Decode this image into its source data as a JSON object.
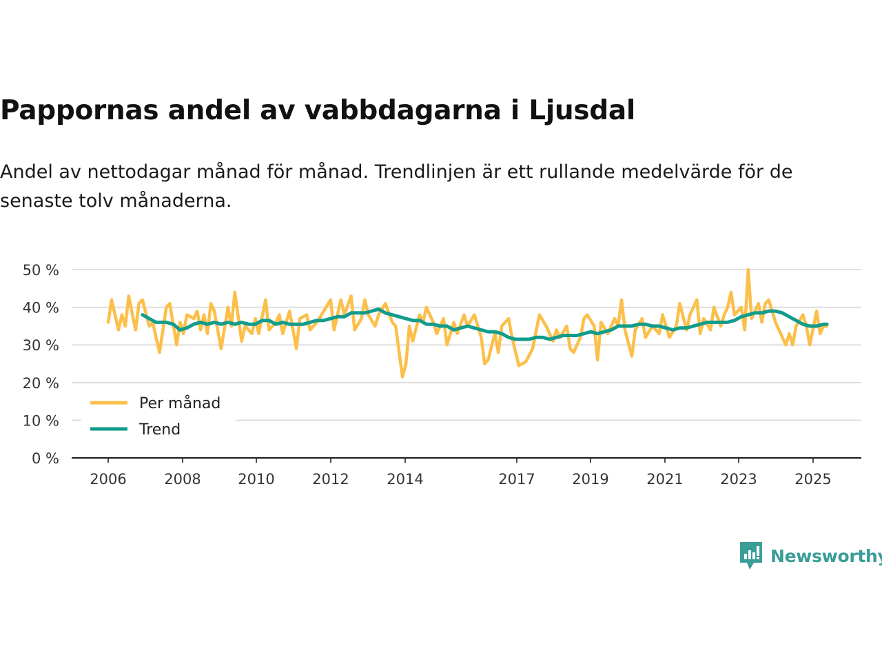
{
  "title": "Pappornas andel av vabbdagarna i Ljusdal",
  "subtitle": "Andel av nettodagar månad för månad. Trendlinjen är ett rullande medelvärde för de senaste tolv månaderna.",
  "brand": "Newsworthy",
  "colors": {
    "monthly": "#fbbf4a",
    "trend": "#139c8c",
    "grid": "#d9d9d9",
    "axis": "#222222",
    "brand": "#3a9d98"
  },
  "chart_data": {
    "type": "line",
    "title": "Pappornas andel av vabbdagarna i Ljusdal",
    "xlabel": "",
    "ylabel": "",
    "ylim": [
      0,
      50
    ],
    "xlim": [
      2005.7,
      2027.0
    ],
    "y_ticks": [
      0,
      10,
      20,
      30,
      40,
      50
    ],
    "y_tick_labels": [
      "0 %",
      "10 %",
      "20 %",
      "30 %",
      "40 %",
      "50 %"
    ],
    "x_ticks": [
      2006,
      2008,
      2010,
      2012,
      2014,
      2017,
      2019,
      2021,
      2023,
      2025
    ],
    "x_tick_labels": [
      "2006",
      "2008",
      "2010",
      "2012",
      "2014",
      "2017",
      "2019",
      "2021",
      "2023",
      "2025"
    ],
    "legend": {
      "position": "bottom-left",
      "entries": [
        "Per månad",
        "Trend"
      ]
    },
    "series": [
      {
        "name": "Per månad",
        "points": [
          [
            2006.0,
            36
          ],
          [
            2006.1,
            42
          ],
          [
            2006.3,
            34
          ],
          [
            2006.4,
            38
          ],
          [
            2006.5,
            35
          ],
          [
            2006.6,
            43
          ],
          [
            2006.8,
            34
          ],
          [
            2006.9,
            41
          ],
          [
            2007.0,
            42
          ],
          [
            2007.2,
            35
          ],
          [
            2007.3,
            36
          ],
          [
            2007.5,
            28
          ],
          [
            2007.7,
            40
          ],
          [
            2007.8,
            41
          ],
          [
            2008.0,
            30
          ],
          [
            2008.1,
            36
          ],
          [
            2008.2,
            33
          ],
          [
            2008.3,
            38
          ],
          [
            2008.5,
            37
          ],
          [
            2008.6,
            39
          ],
          [
            2008.7,
            34
          ],
          [
            2008.8,
            38
          ],
          [
            2008.9,
            33
          ],
          [
            2009.0,
            41
          ],
          [
            2009.1,
            39
          ],
          [
            2009.3,
            29
          ],
          [
            2009.5,
            40
          ],
          [
            2009.6,
            35
          ],
          [
            2009.7,
            44
          ],
          [
            2009.9,
            31
          ],
          [
            2010.0,
            35
          ],
          [
            2010.2,
            33
          ],
          [
            2010.3,
            37
          ],
          [
            2010.4,
            33
          ],
          [
            2010.6,
            42
          ],
          [
            2010.7,
            34
          ],
          [
            2010.9,
            36
          ],
          [
            2011.0,
            38
          ],
          [
            2011.1,
            33
          ],
          [
            2011.3,
            39
          ],
          [
            2011.5,
            29
          ],
          [
            2011.6,
            37
          ],
          [
            2011.8,
            38
          ],
          [
            2011.9,
            34
          ],
          [
            2012.1,
            36
          ],
          [
            2012.3,
            39
          ],
          [
            2012.5,
            42
          ],
          [
            2012.6,
            34
          ],
          [
            2012.8,
            42
          ],
          [
            2012.9,
            38
          ],
          [
            2013.1,
            43
          ],
          [
            2013.2,
            34
          ],
          [
            2013.4,
            37
          ],
          [
            2013.5,
            42
          ],
          [
            2013.6,
            38
          ],
          [
            2013.8,
            35
          ],
          [
            2013.9,
            38
          ],
          [
            2014.1,
            41
          ],
          [
            2014.3,
            36
          ],
          [
            2014.4,
            35
          ],
          [
            2014.6,
            21.5
          ],
          [
            2014.7,
            25
          ],
          [
            2014.8,
            35
          ],
          [
            2014.9,
            31
          ],
          [
            2015.1,
            38
          ],
          [
            2015.2,
            36
          ],
          [
            2015.3,
            40
          ],
          [
            2015.5,
            36
          ],
          [
            2015.6,
            33
          ],
          [
            2015.8,
            37
          ],
          [
            2015.9,
            30
          ],
          [
            2016.1,
            36
          ],
          [
            2016.2,
            33
          ],
          [
            2016.4,
            38
          ],
          [
            2016.5,
            35
          ],
          [
            2016.7,
            38
          ],
          [
            2016.9,
            32
          ],
          [
            2017.0,
            25
          ],
          [
            2017.1,
            26
          ],
          [
            2017.3,
            33
          ],
          [
            2017.4,
            28
          ],
          [
            2017.5,
            35
          ],
          [
            2017.7,
            37
          ],
          [
            2017.8,
            32
          ],
          [
            2018.0,
            24.5
          ],
          [
            2018.2,
            25.5
          ],
          [
            2018.4,
            29
          ],
          [
            2018.6,
            38
          ],
          [
            2018.8,
            35
          ],
          [
            2019.0,
            31
          ],
          [
            2019.1,
            34
          ],
          [
            2019.2,
            32
          ],
          [
            2019.4,
            35
          ],
          [
            2019.5,
            29
          ],
          [
            2019.6,
            28
          ],
          [
            2019.8,
            32
          ],
          [
            2019.9,
            37
          ],
          [
            2020.0,
            38
          ],
          [
            2020.2,
            35
          ],
          [
            2020.3,
            26
          ],
          [
            2020.4,
            36
          ],
          [
            2020.6,
            33
          ],
          [
            2020.8,
            37
          ],
          [
            2020.9,
            35
          ],
          [
            2021.0,
            42
          ],
          [
            2021.1,
            34
          ],
          [
            2021.3,
            27
          ],
          [
            2021.4,
            34
          ],
          [
            2021.6,
            37
          ],
          [
            2021.7,
            32
          ],
          [
            2021.9,
            35
          ],
          [
            2022.1,
            33
          ],
          [
            2022.2,
            38
          ],
          [
            2022.3,
            35
          ],
          [
            2022.4,
            32
          ],
          [
            2022.6,
            35
          ],
          [
            2022.7,
            41
          ],
          [
            2022.9,
            34
          ],
          [
            2023.0,
            38
          ],
          [
            2023.2,
            42
          ],
          [
            2023.3,
            33
          ],
          [
            2023.4,
            37
          ],
          [
            2023.6,
            34
          ],
          [
            2023.7,
            40
          ],
          [
            2023.9,
            35
          ],
          [
            2024.0,
            38
          ],
          [
            2024.1,
            40
          ],
          [
            2024.2,
            44
          ],
          [
            2024.3,
            38
          ],
          [
            2024.5,
            40
          ],
          [
            2024.6,
            34
          ],
          [
            2024.7,
            50
          ],
          [
            2024.8,
            37
          ],
          [
            2024.9,
            39
          ],
          [
            2025.0,
            41
          ],
          [
            2025.1,
            36
          ],
          [
            2025.2,
            41
          ],
          [
            2025.3,
            42
          ],
          [
            2025.5,
            36
          ],
          [
            2025.6,
            34
          ],
          [
            2025.8,
            30
          ],
          [
            2025.9,
            33
          ],
          [
            2026.0,
            30
          ],
          [
            2026.1,
            35
          ],
          [
            2026.3,
            38
          ],
          [
            2026.4,
            35
          ],
          [
            2026.5,
            30
          ],
          [
            2026.7,
            39
          ],
          [
            2026.8,
            33
          ],
          [
            2026.9,
            35
          ],
          [
            2027.0,
            35
          ]
        ]
      },
      {
        "name": "Trend",
        "points": [
          [
            2007.0,
            38
          ],
          [
            2007.2,
            37
          ],
          [
            2007.4,
            36
          ],
          [
            2007.7,
            36
          ],
          [
            2007.9,
            35.5
          ],
          [
            2008.1,
            34
          ],
          [
            2008.3,
            34.5
          ],
          [
            2008.5,
            35.5
          ],
          [
            2008.7,
            36
          ],
          [
            2008.9,
            35.5
          ],
          [
            2009.1,
            36
          ],
          [
            2009.3,
            35.5
          ],
          [
            2009.5,
            36
          ],
          [
            2009.7,
            35.5
          ],
          [
            2009.9,
            36
          ],
          [
            2010.1,
            35.5
          ],
          [
            2010.3,
            35.5
          ],
          [
            2010.5,
            36.5
          ],
          [
            2010.7,
            36.5
          ],
          [
            2010.9,
            35.5
          ],
          [
            2011.1,
            36
          ],
          [
            2011.3,
            35.5
          ],
          [
            2011.5,
            35.5
          ],
          [
            2011.7,
            35.5
          ],
          [
            2011.9,
            36
          ],
          [
            2012.1,
            36.5
          ],
          [
            2012.3,
            36.5
          ],
          [
            2012.5,
            37
          ],
          [
            2012.7,
            37.5
          ],
          [
            2012.9,
            37.5
          ],
          [
            2013.1,
            38.5
          ],
          [
            2013.3,
            38.5
          ],
          [
            2013.5,
            38.5
          ],
          [
            2013.7,
            39
          ],
          [
            2013.9,
            39.5
          ],
          [
            2014.1,
            38.5
          ],
          [
            2014.3,
            38
          ],
          [
            2014.5,
            37.5
          ],
          [
            2014.7,
            37
          ],
          [
            2014.9,
            36.5
          ],
          [
            2015.1,
            36.5
          ],
          [
            2015.3,
            35.5
          ],
          [
            2015.5,
            35.5
          ],
          [
            2015.7,
            35
          ],
          [
            2015.9,
            35
          ],
          [
            2016.1,
            34
          ],
          [
            2016.3,
            34.5
          ],
          [
            2016.5,
            35
          ],
          [
            2016.7,
            34.5
          ],
          [
            2016.9,
            34
          ],
          [
            2017.1,
            33.5
          ],
          [
            2017.3,
            33.5
          ],
          [
            2017.5,
            33
          ],
          [
            2017.7,
            32
          ],
          [
            2017.9,
            31.5
          ],
          [
            2018.1,
            31.5
          ],
          [
            2018.3,
            31.5
          ],
          [
            2018.5,
            32
          ],
          [
            2018.7,
            32
          ],
          [
            2018.9,
            31.5
          ],
          [
            2019.1,
            32
          ],
          [
            2019.3,
            32.5
          ],
          [
            2019.5,
            32.5
          ],
          [
            2019.7,
            32.5
          ],
          [
            2019.9,
            33
          ],
          [
            2020.1,
            33.5
          ],
          [
            2020.3,
            33
          ],
          [
            2020.5,
            33.5
          ],
          [
            2020.7,
            34
          ],
          [
            2020.9,
            35
          ],
          [
            2021.1,
            35
          ],
          [
            2021.3,
            35
          ],
          [
            2021.5,
            35.5
          ],
          [
            2021.7,
            35.5
          ],
          [
            2021.9,
            35
          ],
          [
            2022.1,
            35
          ],
          [
            2022.3,
            34.5
          ],
          [
            2022.5,
            34
          ],
          [
            2022.7,
            34.5
          ],
          [
            2022.9,
            34.5
          ],
          [
            2023.1,
            35
          ],
          [
            2023.3,
            35.5
          ],
          [
            2023.5,
            36
          ],
          [
            2023.7,
            36
          ],
          [
            2023.9,
            36
          ],
          [
            2024.1,
            36
          ],
          [
            2024.3,
            36.5
          ],
          [
            2024.5,
            37.5
          ],
          [
            2024.7,
            38
          ],
          [
            2024.9,
            38.5
          ],
          [
            2025.1,
            38.5
          ],
          [
            2025.3,
            39
          ],
          [
            2025.5,
            39
          ],
          [
            2025.7,
            38.5
          ],
          [
            2025.9,
            37.5
          ],
          [
            2026.1,
            36.5
          ],
          [
            2026.3,
            35.5
          ],
          [
            2026.5,
            35
          ],
          [
            2026.7,
            35
          ],
          [
            2026.9,
            35.5
          ],
          [
            2027.0,
            35.5
          ]
        ]
      }
    ]
  }
}
